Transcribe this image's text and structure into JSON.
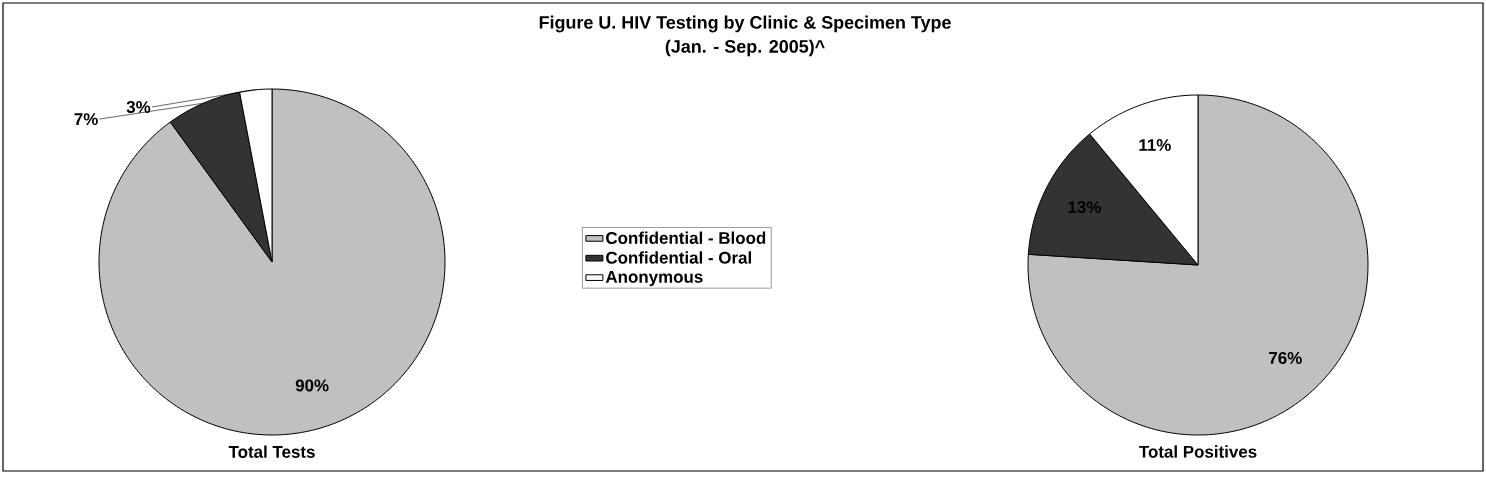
{
  "chart_data": [
    {
      "type": "pie",
      "title": "Figure U. HIV Testing by Clinic & Specimen Type",
      "subtitle": "(Jan. - Sep. 2005)^",
      "xlabel": "Total Tests",
      "categories": [
        "Confidential - Blood",
        "Confidential - Oral",
        "Anonymous"
      ],
      "values": [
        90,
        7,
        3
      ],
      "colors": [
        "#c0c0c0",
        "#333333",
        "#ffffff"
      ],
      "value_labels": [
        "90%",
        "7%",
        "3%"
      ],
      "legend": "right"
    },
    {
      "type": "pie",
      "xlabel": "Total Positives",
      "categories": [
        null,
        null,
        null
      ],
      "values": [
        76,
        13,
        11
      ],
      "colors": [
        "#c0c0c0",
        "#333333",
        "#ffffff"
      ],
      "value_labels": [
        "76%",
        "13%",
        "11%"
      ]
    }
  ]
}
